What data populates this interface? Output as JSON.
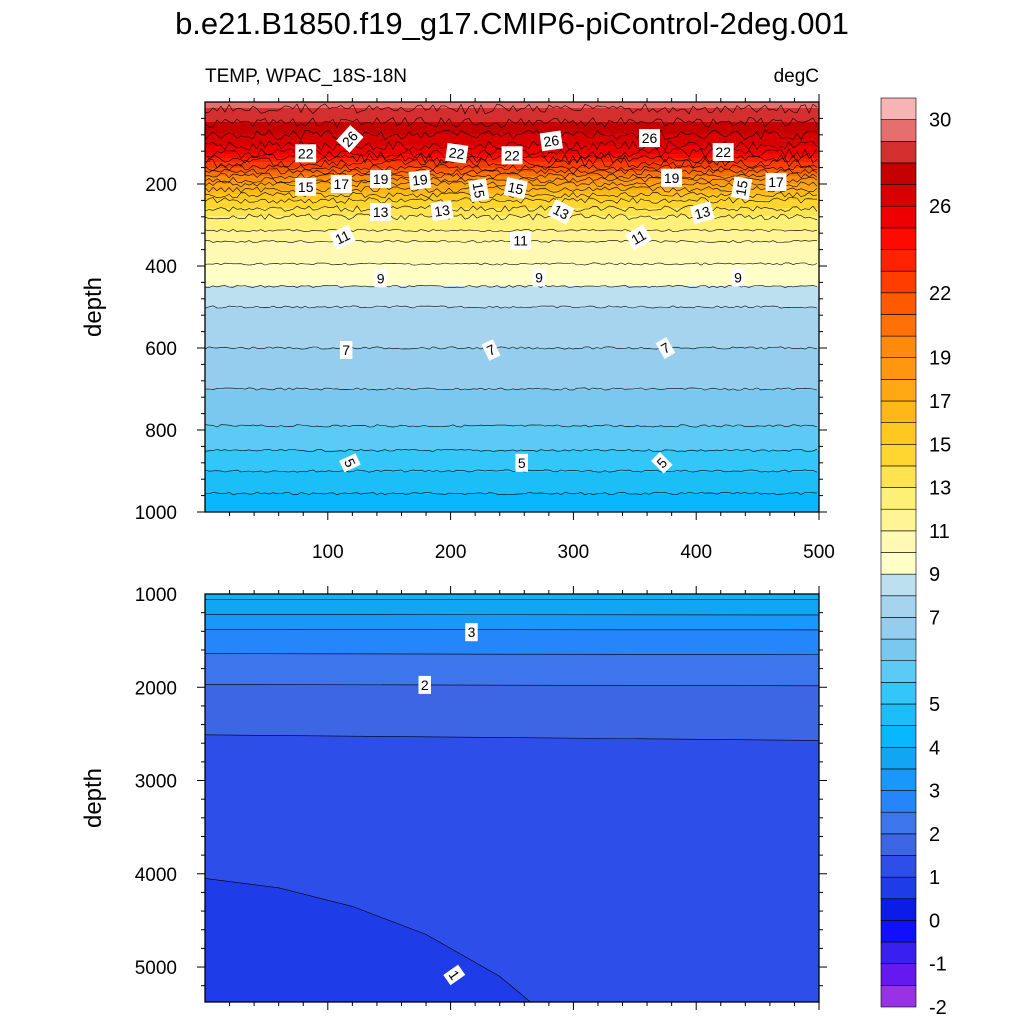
{
  "chart_data": {
    "type": "heatmap",
    "title": "b.e21.B1850.f19_g17.CMIP6-piControl-2deg.001",
    "variable_label": "TEMP, WPAC_18S-18N",
    "units_label": "degC",
    "colorbar": {
      "levels": [
        -2,
        -1.5,
        -1,
        -0.5,
        0,
        0.5,
        1,
        1.5,
        2,
        2.5,
        3,
        3.5,
        4,
        4.5,
        5,
        5.5,
        6,
        6.5,
        7,
        8,
        9,
        10,
        11,
        12,
        13,
        14,
        15,
        16,
        17,
        18,
        19,
        20,
        21,
        22,
        23,
        24,
        25,
        26,
        27,
        28,
        29,
        30,
        31
      ],
      "colors": [
        "#9932e5",
        "#6518f0",
        "#3a20f0",
        "#1010ff",
        "#0c1ce8",
        "#1e3ce8",
        "#2e4eea",
        "#3c66e4",
        "#3d75ec",
        "#2585fb",
        "#1998fb",
        "#11a6f4",
        "#08b8ff",
        "#1bbef7",
        "#33c6f8",
        "#5bcbf5",
        "#7ac8ef",
        "#94cdee",
        "#a6d4ee",
        "#bde0f0",
        "#ffffc8",
        "#fff9b4",
        "#fff496",
        "#fff078",
        "#ffe450",
        "#ffd530",
        "#ffc820",
        "#ffb818",
        "#ffa814",
        "#ff9810",
        "#ff8a0c",
        "#ff7006",
        "#ff5a02",
        "#ff3d00",
        "#ff2200",
        "#ff0a00",
        "#ee0000",
        "#d80000",
        "#c40000",
        "#d52e2e",
        "#e56e6e",
        "#f8b4b4"
      ],
      "tick_labels": [
        "-2",
        "-1",
        "0",
        "1",
        "2",
        "3",
        "4",
        "5",
        "7",
        "9",
        "11",
        "13",
        "15",
        "17",
        "19",
        "22",
        "26",
        "30"
      ]
    },
    "panels": [
      {
        "name": "upper-depth-panel",
        "xlim": [
          0,
          500
        ],
        "ylim": [
          1000,
          0
        ],
        "xticks": [
          "100",
          "200",
          "300",
          "400",
          "500"
        ],
        "yticks": [
          "200",
          "400",
          "600",
          "800",
          "1000"
        ],
        "ylabel": "depth",
        "depth_grid": [
          0,
          50,
          80,
          120,
          160,
          180,
          200,
          220,
          240,
          260,
          280,
          300,
          340,
          380,
          420,
          480,
          520,
          560,
          600,
          640,
          700,
          760,
          820,
          880,
          940,
          1000
        ],
        "temperature_profile": [
          29.5,
          28,
          27,
          25.5,
          22,
          20,
          18,
          16.5,
          15,
          14,
          13,
          12.5,
          11,
          10.3,
          9.5,
          8.5,
          7.5,
          7.3,
          7,
          6.8,
          6.5,
          6.2,
          5.8,
          5.2,
          4.6,
          4.2
        ],
        "contour_labels": [
          {
            "text": "26",
            "x": 118,
            "depth": 90,
            "rot": -48
          },
          {
            "text": "22",
            "x": 82,
            "depth": 125,
            "rot": 0
          },
          {
            "text": "22",
            "x": 205,
            "depth": 125,
            "rot": 8
          },
          {
            "text": "22",
            "x": 250,
            "depth": 130,
            "rot": 0
          },
          {
            "text": "26",
            "x": 282,
            "depth": 95,
            "rot": -8
          },
          {
            "text": "26",
            "x": 362,
            "depth": 88,
            "rot": 0
          },
          {
            "text": "22",
            "x": 422,
            "depth": 122,
            "rot": 0
          },
          {
            "text": "15",
            "x": 82,
            "depth": 207,
            "rot": 0
          },
          {
            "text": "17",
            "x": 111,
            "depth": 200,
            "rot": 0
          },
          {
            "text": "19",
            "x": 143,
            "depth": 188,
            "rot": 0
          },
          {
            "text": "19",
            "x": 175,
            "depth": 190,
            "rot": -6
          },
          {
            "text": "15",
            "x": 223,
            "depth": 215,
            "rot": 80
          },
          {
            "text": "15",
            "x": 253,
            "depth": 210,
            "rot": 12
          },
          {
            "text": "19",
            "x": 380,
            "depth": 185,
            "rot": 0
          },
          {
            "text": "15",
            "x": 437,
            "depth": 210,
            "rot": -80
          },
          {
            "text": "17",
            "x": 465,
            "depth": 195,
            "rot": 0
          },
          {
            "text": "13",
            "x": 143,
            "depth": 268,
            "rot": 0
          },
          {
            "text": "13",
            "x": 193,
            "depth": 265,
            "rot": -8
          },
          {
            "text": "13",
            "x": 290,
            "depth": 268,
            "rot": 28
          },
          {
            "text": "13",
            "x": 405,
            "depth": 270,
            "rot": -15
          },
          {
            "text": "11",
            "x": 112,
            "depth": 330,
            "rot": -25
          },
          {
            "text": "11",
            "x": 257,
            "depth": 338,
            "rot": 0
          },
          {
            "text": "11",
            "x": 353,
            "depth": 330,
            "rot": -30
          },
          {
            "text": "9",
            "x": 143,
            "depth": 430,
            "rot": 0
          },
          {
            "text": "9",
            "x": 272,
            "depth": 428,
            "rot": 0
          },
          {
            "text": "9",
            "x": 434,
            "depth": 428,
            "rot": 0
          },
          {
            "text": "7",
            "x": 115,
            "depth": 605,
            "rot": 0
          },
          {
            "text": "7",
            "x": 233,
            "depth": 605,
            "rot": -25
          },
          {
            "text": "7",
            "x": 375,
            "depth": 600,
            "rot": -30
          },
          {
            "text": "5",
            "x": 118,
            "depth": 880,
            "rot": 65
          },
          {
            "text": "5",
            "x": 258,
            "depth": 880,
            "rot": 0
          },
          {
            "text": "5",
            "x": 372,
            "depth": 880,
            "rot": -45
          }
        ]
      },
      {
        "name": "lower-depth-panel",
        "xlim": [
          0,
          500
        ],
        "ylim": [
          5375,
          1000
        ],
        "yticks": [
          "1000",
          "2000",
          "3000",
          "4000",
          "5000"
        ],
        "ylabel": "depth",
        "contours": [
          {
            "level": 4,
            "depth_left": 1060,
            "depth_right": 1060
          },
          {
            "level": 3.5,
            "depth_left": 1220,
            "depth_right": 1225
          },
          {
            "level": 3,
            "depth_left": 1380,
            "depth_right": 1385
          },
          {
            "level": 2.5,
            "depth_left": 1640,
            "depth_right": 1650
          },
          {
            "level": 2,
            "depth_left": 1970,
            "depth_right": 1985
          },
          {
            "level": 1.5,
            "depth_left": 2510,
            "depth_right": 2570
          }
        ],
        "bottom_contour": {
          "level": 1,
          "points": [
            [
              0,
              4050
            ],
            [
              60,
              4150
            ],
            [
              120,
              4350
            ],
            [
              180,
              4650
            ],
            [
              240,
              5100
            ],
            [
              265,
              5375
            ]
          ]
        },
        "contour_labels": [
          {
            "text": "3",
            "x": 217,
            "depth": 1410,
            "rot": 0
          },
          {
            "text": "2",
            "x": 179,
            "depth": 1975,
            "rot": 0
          },
          {
            "text": "1",
            "x": 203,
            "depth": 5085,
            "rot": 55
          }
        ]
      }
    ]
  }
}
